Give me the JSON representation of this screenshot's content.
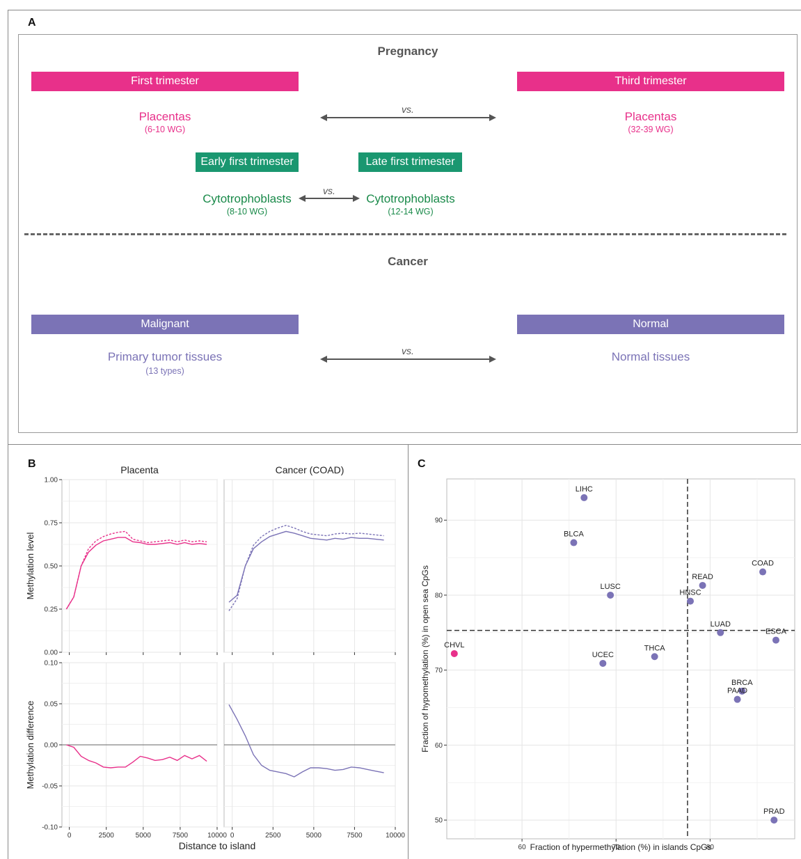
{
  "panelA": {
    "letter": "A",
    "pregnancy_title": "Pregnancy",
    "cancer_title": "Cancer",
    "first_trimester": "First trimester",
    "third_trimester": "Third trimester",
    "placentas_left": "Placentas",
    "placentas_left_sub": "(6-10 WG)",
    "placentas_right": "Placentas",
    "placentas_right_sub": "(32-39 WG)",
    "vs": "vs.",
    "early_first": "Early first trimester",
    "late_first": "Late first trimester",
    "cyto_left": "Cytotrophoblasts",
    "cyto_left_sub": "(8-10 WG)",
    "cyto_right": "Cytotrophoblasts",
    "cyto_right_sub": "(12-14 WG)",
    "malignant": "Malignant",
    "normal": "Normal",
    "primary_tumor": "Primary tumor tissues",
    "primary_tumor_sub": "(13 types)",
    "normal_tissues": "Normal tissues",
    "colors": {
      "pink": "#e8308a",
      "green": "#1a9770",
      "purple": "#7b73b6"
    }
  },
  "panelB": {
    "letter": "B",
    "facets": [
      "Placenta",
      "Cancer (COAD)"
    ],
    "xlabel": "Distance to island",
    "ylabel_top": "Methylation level",
    "ylabel_bottom": "Methylation difference",
    "xticks": [
      0,
      2500,
      5000,
      7500,
      10000
    ],
    "yticks_top": [
      "0.00",
      "0.25",
      "0.50",
      "0.75",
      "1.00"
    ],
    "yticks_bottom": [
      "-0.10",
      "-0.05",
      "0.00",
      "0.05",
      "0.10"
    ]
  },
  "panelC": {
    "letter": "C",
    "xlabel": "Fraction of hypermethylation (%) in islands CpGs",
    "ylabel": "Fraction of hypomethylation (%) in open sea CpGs",
    "xticks": [
      60,
      70,
      80
    ],
    "yticks": [
      50,
      60,
      70,
      80,
      90
    ]
  },
  "chart_data": [
    {
      "type": "line",
      "title": "Placenta",
      "xlabel": "Distance to island",
      "ylabel": "Methylation level",
      "xlim": [
        -500,
        10000
      ],
      "ylim": [
        0,
        1.0
      ],
      "color": "#e8308a",
      "x": [
        -200,
        300,
        800,
        1300,
        1800,
        2300,
        2800,
        3300,
        3800,
        4300,
        4800,
        5300,
        5800,
        6300,
        6800,
        7300,
        7800,
        8300,
        8800,
        9300
      ],
      "series": [
        {
          "values": [
            0.25,
            0.32,
            0.5,
            0.58,
            0.62,
            0.645,
            0.655,
            0.665,
            0.665,
            0.64,
            0.635,
            0.625,
            0.625,
            0.63,
            0.635,
            0.625,
            0.635,
            0.625,
            0.63,
            0.625
          ],
          "style": "solid"
        },
        {
          "values": [
            0.25,
            0.32,
            0.5,
            0.6,
            0.645,
            0.67,
            0.685,
            0.695,
            0.7,
            0.655,
            0.645,
            0.635,
            0.64,
            0.645,
            0.65,
            0.64,
            0.65,
            0.64,
            0.645,
            0.64
          ],
          "style": "dashed"
        }
      ]
    },
    {
      "type": "line",
      "title": "Cancer (COAD)",
      "xlabel": "Distance to island",
      "ylabel": "Methylation level",
      "xlim": [
        -500,
        10000
      ],
      "ylim": [
        0,
        1.0
      ],
      "color": "#7b73b6",
      "x": [
        -200,
        300,
        800,
        1300,
        1800,
        2300,
        2800,
        3300,
        3800,
        4300,
        4800,
        5300,
        5800,
        6300,
        6800,
        7300,
        7800,
        8300,
        8800,
        9300
      ],
      "series": [
        {
          "values": [
            0.29,
            0.33,
            0.5,
            0.6,
            0.64,
            0.67,
            0.685,
            0.7,
            0.69,
            0.675,
            0.66,
            0.655,
            0.65,
            0.66,
            0.655,
            0.665,
            0.66,
            0.66,
            0.655,
            0.65
          ],
          "style": "solid"
        },
        {
          "values": [
            0.24,
            0.31,
            0.5,
            0.62,
            0.67,
            0.7,
            0.72,
            0.735,
            0.72,
            0.7,
            0.685,
            0.68,
            0.675,
            0.685,
            0.69,
            0.685,
            0.69,
            0.685,
            0.68,
            0.675
          ],
          "style": "dashed"
        }
      ]
    },
    {
      "type": "line",
      "title": "Placenta",
      "xlabel": "Distance to island",
      "ylabel": "Methylation difference",
      "xlim": [
        -500,
        10000
      ],
      "ylim": [
        -0.1,
        0.1
      ],
      "color": "#e8308a",
      "x": [
        -200,
        300,
        800,
        1300,
        1800,
        2300,
        2800,
        3300,
        3800,
        4300,
        4800,
        5300,
        5800,
        6300,
        6800,
        7300,
        7800,
        8300,
        8800,
        9300
      ],
      "values": [
        0.0,
        -0.003,
        -0.014,
        -0.019,
        -0.022,
        -0.027,
        -0.028,
        -0.027,
        -0.027,
        -0.021,
        -0.014,
        -0.016,
        -0.019,
        -0.018,
        -0.015,
        -0.019,
        -0.013,
        -0.017,
        -0.013,
        -0.02
      ]
    },
    {
      "type": "line",
      "title": "Cancer (COAD)",
      "xlabel": "Distance to island",
      "ylabel": "Methylation difference",
      "xlim": [
        -500,
        10000
      ],
      "ylim": [
        -0.1,
        0.1
      ],
      "color": "#7b73b6",
      "x": [
        -200,
        300,
        800,
        1300,
        1800,
        2300,
        2800,
        3300,
        3800,
        4300,
        4800,
        5300,
        5800,
        6300,
        6800,
        7300,
        7800,
        8300,
        8800,
        9300
      ],
      "values": [
        0.049,
        0.031,
        0.011,
        -0.012,
        -0.025,
        -0.031,
        -0.033,
        -0.035,
        -0.039,
        -0.033,
        -0.028,
        -0.028,
        -0.029,
        -0.031,
        -0.03,
        -0.027,
        -0.028,
        -0.03,
        -0.032,
        -0.034
      ]
    },
    {
      "type": "scatter",
      "xlabel": "Fraction of hypermethylation (%) in islands CpGs",
      "ylabel": "Fraction of hypomethylation (%) in open sea CpGs",
      "xlim": [
        52,
        89
      ],
      "ylim": [
        47.5,
        95.5
      ],
      "ref_lines": {
        "x": 77.6,
        "y": 75.3
      },
      "grid": true,
      "points": [
        {
          "label": "LIHC",
          "x": 66.6,
          "y": 93.0,
          "color": "#7b73b6"
        },
        {
          "label": "BLCA",
          "x": 65.5,
          "y": 87.0,
          "color": "#7b73b6"
        },
        {
          "label": "COAD",
          "x": 85.6,
          "y": 83.1,
          "color": "#7b73b6"
        },
        {
          "label": "READ",
          "x": 79.2,
          "y": 81.3,
          "color": "#7b73b6"
        },
        {
          "label": "LUSC",
          "x": 69.4,
          "y": 80.0,
          "color": "#7b73b6"
        },
        {
          "label": "HNSC",
          "x": 77.9,
          "y": 79.2,
          "color": "#7b73b6"
        },
        {
          "label": "LUAD",
          "x": 81.1,
          "y": 75.0,
          "color": "#7b73b6"
        },
        {
          "label": "ESCA",
          "x": 87.0,
          "y": 74.0,
          "color": "#7b73b6"
        },
        {
          "label": "CHVL",
          "x": 52.8,
          "y": 72.2,
          "color": "#e8308a"
        },
        {
          "label": "UCEC",
          "x": 68.6,
          "y": 70.9,
          "color": "#7b73b6"
        },
        {
          "label": "THCA",
          "x": 74.1,
          "y": 71.8,
          "color": "#7b73b6"
        },
        {
          "label": "BRCA",
          "x": 83.4,
          "y": 67.2,
          "color": "#7b73b6"
        },
        {
          "label": "PAAD",
          "x": 82.9,
          "y": 66.1,
          "color": "#7b73b6"
        },
        {
          "label": "PRAD",
          "x": 86.8,
          "y": 50.0,
          "color": "#7b73b6"
        }
      ]
    }
  ]
}
